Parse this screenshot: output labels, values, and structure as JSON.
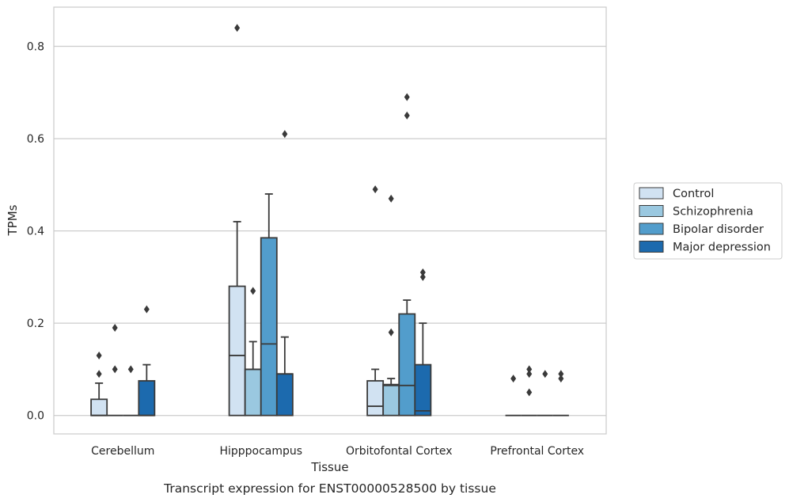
{
  "caption": "Transcript expression for ENST00000528500 by tissue",
  "chart_data": {
    "type": "box",
    "title": "",
    "xlabel": "Tissue",
    "ylabel": "TPMs",
    "ylim": [
      -0.04,
      0.885
    ],
    "yticks": [
      0.0,
      0.2,
      0.4,
      0.6,
      0.8
    ],
    "ytick_labels": [
      "0.0",
      "0.2",
      "0.4",
      "0.6",
      "0.8"
    ],
    "categories": [
      "Cerebellum",
      "Hipppocampus",
      "Orbitofontal Cortex",
      "Prefrontal Cortex"
    ],
    "grid": true,
    "legend_position": "right",
    "series": [
      {
        "name": "Control",
        "color": "#d1e2f2",
        "boxes": [
          {
            "q1": 0.0,
            "median": 0.0,
            "q3": 0.035,
            "whisker_low": 0.0,
            "whisker_high": 0.07,
            "outliers": [
              0.09,
              0.13
            ]
          },
          {
            "q1": 0.0,
            "median": 0.13,
            "q3": 0.28,
            "whisker_low": 0.0,
            "whisker_high": 0.42,
            "outliers": [
              0.84
            ]
          },
          {
            "q1": 0.0,
            "median": 0.02,
            "q3": 0.075,
            "whisker_low": 0.0,
            "whisker_high": 0.1,
            "outliers": [
              0.49
            ]
          },
          {
            "q1": 0.0,
            "median": 0.0,
            "q3": 0.0,
            "whisker_low": 0.0,
            "whisker_high": 0.0,
            "outliers": [
              0.08
            ]
          }
        ]
      },
      {
        "name": "Schizophrenia",
        "color": "#9ac8e0",
        "boxes": [
          {
            "q1": 0.0,
            "median": 0.0,
            "q3": 0.0,
            "whisker_low": 0.0,
            "whisker_high": 0.0,
            "outliers": [
              0.1,
              0.19
            ]
          },
          {
            "q1": 0.0,
            "median": 0.1,
            "q3": 0.1,
            "whisker_low": 0.0,
            "whisker_high": 0.16,
            "outliers": [
              0.27
            ]
          },
          {
            "q1": 0.0,
            "median": 0.065,
            "q3": 0.067,
            "whisker_low": 0.0,
            "whisker_high": 0.08,
            "outliers": [
              0.18,
              0.47
            ]
          },
          {
            "q1": 0.0,
            "median": 0.0,
            "q3": 0.0,
            "whisker_low": 0.0,
            "whisker_high": 0.0,
            "outliers": [
              0.05,
              0.09,
              0.1
            ]
          }
        ]
      },
      {
        "name": "Bipolar disorder",
        "color": "#529dcc",
        "boxes": [
          {
            "q1": 0.0,
            "median": 0.0,
            "q3": 0.0,
            "whisker_low": 0.0,
            "whisker_high": 0.0,
            "outliers": [
              0.1
            ]
          },
          {
            "q1": 0.0,
            "median": 0.155,
            "q3": 0.385,
            "whisker_low": 0.0,
            "whisker_high": 0.48,
            "outliers": []
          },
          {
            "q1": 0.0,
            "median": 0.065,
            "q3": 0.22,
            "whisker_low": 0.0,
            "whisker_high": 0.25,
            "outliers": [
              0.65,
              0.69
            ]
          },
          {
            "q1": 0.0,
            "median": 0.0,
            "q3": 0.0,
            "whisker_low": 0.0,
            "whisker_high": 0.0,
            "outliers": [
              0.09
            ]
          }
        ]
      },
      {
        "name": "Major depression",
        "color": "#1c6aae",
        "boxes": [
          {
            "q1": 0.0,
            "median": 0.0,
            "q3": 0.075,
            "whisker_low": 0.0,
            "whisker_high": 0.11,
            "outliers": [
              0.23
            ]
          },
          {
            "q1": 0.0,
            "median": 0.09,
            "q3": 0.09,
            "whisker_low": 0.0,
            "whisker_high": 0.17,
            "outliers": [
              0.61
            ]
          },
          {
            "q1": 0.0,
            "median": 0.01,
            "q3": 0.11,
            "whisker_low": 0.0,
            "whisker_high": 0.2,
            "outliers": [
              0.3,
              0.31
            ]
          },
          {
            "q1": 0.0,
            "median": 0.0,
            "q3": 0.0,
            "whisker_low": 0.0,
            "whisker_high": 0.0,
            "outliers": [
              0.08,
              0.09
            ]
          }
        ]
      }
    ]
  }
}
